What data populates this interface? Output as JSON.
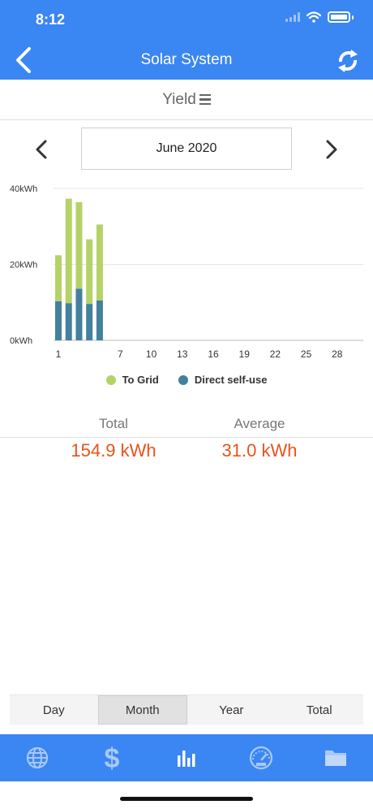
{
  "status": {
    "time": "8:12"
  },
  "header": {
    "title": "Solar System"
  },
  "yield_selector": {
    "label": "Yield"
  },
  "date_selector": {
    "value": "June 2020"
  },
  "chart_data": {
    "type": "bar",
    "stacked": true,
    "x": [
      1,
      2,
      3,
      4,
      5
    ],
    "x_ticks": [
      "1",
      "7",
      "10",
      "13",
      "16",
      "19",
      "22",
      "25",
      "28"
    ],
    "y_ticks": [
      "0kWh",
      "20kWh",
      "40kWh"
    ],
    "ylim": [
      0,
      40
    ],
    "series": [
      {
        "name": "Direct self-use",
        "color": "#44809e",
        "values": [
          10.3,
          9.8,
          13.6,
          9.6,
          10.5
        ]
      },
      {
        "name": "To Grid",
        "color": "#b5d268",
        "values": [
          12.1,
          27.5,
          22.8,
          17.0,
          20.0
        ]
      }
    ],
    "grid": true,
    "legend": "bottom"
  },
  "summary": {
    "total_label": "Total",
    "average_label": "Average",
    "total_value": "154.9 kWh",
    "average_value": "31.0 kWh"
  },
  "tabs": [
    {
      "label": "Day",
      "active": false
    },
    {
      "label": "Month",
      "active": true
    },
    {
      "label": "Year",
      "active": false
    },
    {
      "label": "Total",
      "active": false
    }
  ],
  "bottom_nav": [
    {
      "icon": "globe-icon"
    },
    {
      "icon": "dollar-icon"
    },
    {
      "icon": "bar-chart-icon"
    },
    {
      "icon": "gauge-icon"
    },
    {
      "icon": "folder-icon"
    }
  ],
  "colors": {
    "accent": "#3a86f3",
    "value": "#e8531d"
  }
}
